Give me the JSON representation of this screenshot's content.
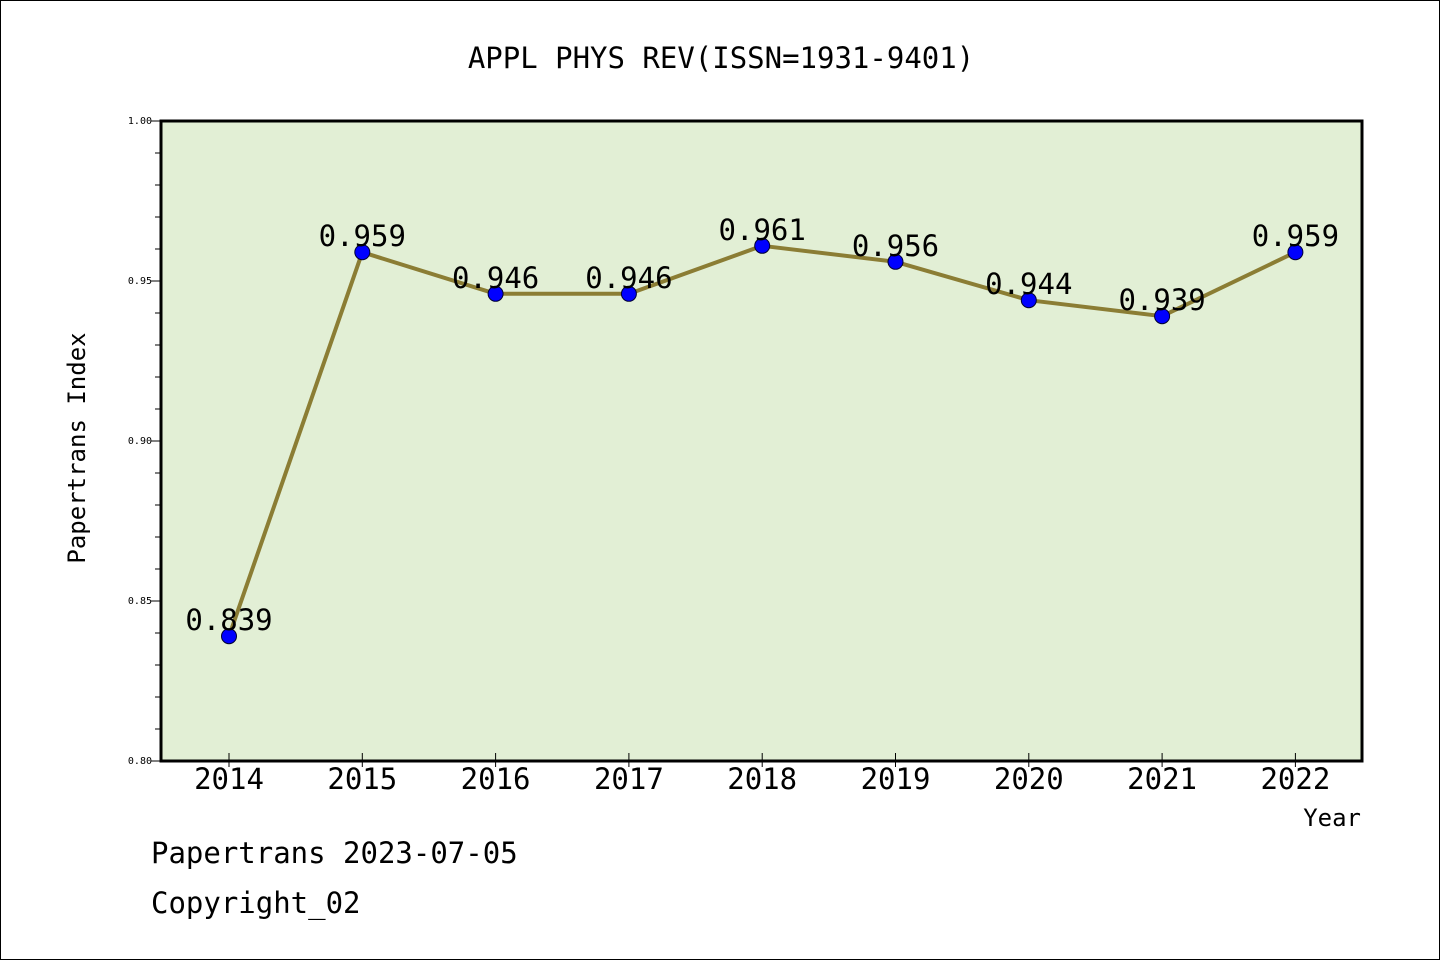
{
  "chart_data": {
    "type": "line",
    "title": "APPL PHYS REV(ISSN=1931-9401)",
    "xlabel": "Year",
    "ylabel": "Papertrans Index",
    "categories": [
      "2014",
      "2015",
      "2016",
      "2017",
      "2018",
      "2019",
      "2020",
      "2021",
      "2022"
    ],
    "series": [
      {
        "values": [
          0.839,
          0.959,
          0.946,
          0.946,
          0.961,
          0.956,
          0.944,
          0.939,
          0.959
        ],
        "data_labels": [
          "0.839",
          "0.959",
          "0.946",
          "0.946",
          "0.961",
          "0.956",
          "0.944",
          "0.939",
          "0.959"
        ]
      }
    ],
    "ylim": [
      0.8,
      1.0
    ],
    "y_ticks": [
      "0.80",
      "0.85",
      "0.90",
      "0.95",
      "1.00"
    ],
    "grid": false,
    "colors": {
      "plot_background": "#e2efd5",
      "line": "#8b7d34",
      "marker": "#0000ff"
    }
  },
  "footer": {
    "line1": "Papertrans 2023-07-05",
    "line2": "Copyright_02"
  }
}
